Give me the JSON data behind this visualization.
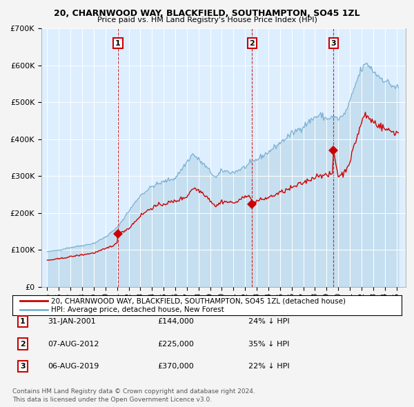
{
  "title": "20, CHARNWOOD WAY, BLACKFIELD, SOUTHAMPTON, SO45 1ZL",
  "subtitle": "Price paid vs. HM Land Registry's House Price Index (HPI)",
  "legend_line1": "20, CHARNWOOD WAY, BLACKFIELD, SOUTHAMPTON, SO45 1ZL (detached house)",
  "legend_line2": "HPI: Average price, detached house, New Forest",
  "footer1": "Contains HM Land Registry data © Crown copyright and database right 2024.",
  "footer2": "This data is licensed under the Open Government Licence v3.0.",
  "sales": [
    {
      "num": 1,
      "date": "31-JAN-2001",
      "date_x": 2001.08,
      "price": 144000,
      "hpi_pct": "24% ↓ HPI"
    },
    {
      "num": 2,
      "date": "07-AUG-2012",
      "date_x": 2012.6,
      "price": 225000,
      "hpi_pct": "35% ↓ HPI"
    },
    {
      "num": 3,
      "date": "06-AUG-2019",
      "date_x": 2019.6,
      "price": 370000,
      "hpi_pct": "22% ↓ HPI"
    }
  ],
  "fig_bg": "#f4f4f4",
  "plot_bg": "#ddeeff",
  "grid_color": "#ffffff",
  "hpi_color": "#7ab0d4",
  "hpi_fill_color": "#c5dff0",
  "sold_color": "#cc0000",
  "sale_marker_color": "#cc0000",
  "dashed_line_color": "#cc0000",
  "ylim": [
    0,
    700000
  ],
  "yticks": [
    0,
    100000,
    200000,
    300000,
    400000,
    500000,
    600000,
    700000
  ],
  "ytick_labels": [
    "£0",
    "£100K",
    "£200K",
    "£300K",
    "£400K",
    "£500K",
    "£600K",
    "£700K"
  ],
  "xlim_start": 1994.5,
  "xlim_end": 2025.8,
  "hpi_anchors": {
    "1995.0": 95000,
    "1996.0": 100000,
    "1997.0": 107000,
    "1998.0": 112000,
    "1999.0": 118000,
    "2000.0": 135000,
    "2001.0": 160000,
    "2002.0": 205000,
    "2003.0": 248000,
    "2004.0": 272000,
    "2005.0": 285000,
    "2006.0": 295000,
    "2007.5": 360000,
    "2008.5": 330000,
    "2009.5": 295000,
    "2010.0": 315000,
    "2011.0": 310000,
    "2012.0": 325000,
    "2013.0": 345000,
    "2014.0": 365000,
    "2015.0": 390000,
    "2016.0": 415000,
    "2017.0": 435000,
    "2018.0": 460000,
    "2018.5": 465000,
    "2019.0": 455000,
    "2019.5": 460000,
    "2020.0": 455000,
    "2020.5": 465000,
    "2021.0": 500000,
    "2021.5": 550000,
    "2022.0": 590000,
    "2022.5": 605000,
    "2023.0": 585000,
    "2023.5": 570000,
    "2024.0": 560000,
    "2024.5": 548000,
    "2025.0": 540000
  },
  "sold_anchors": {
    "1995.0": 72000,
    "1996.0": 76000,
    "1997.0": 82000,
    "1998.0": 87000,
    "1999.0": 92000,
    "2000.0": 103000,
    "2001.0": 118000,
    "2001.08": 144000,
    "2002.0": 158000,
    "2003.0": 193000,
    "2004.0": 215000,
    "2005.0": 225000,
    "2006.0": 232000,
    "2007.0": 245000,
    "2007.5": 268000,
    "2008.0": 262000,
    "2008.5": 252000,
    "2009.5": 218000,
    "2010.0": 232000,
    "2011.0": 228000,
    "2011.5": 232000,
    "2012.0": 250000,
    "2012.5": 240000,
    "2012.6": 225000,
    "2013.0": 232000,
    "2014.0": 242000,
    "2015.0": 255000,
    "2016.0": 268000,
    "2017.0": 282000,
    "2018.0": 298000,
    "2018.5": 305000,
    "2019.0": 300000,
    "2019.5": 307000,
    "2019.6": 370000,
    "2020.0": 300000,
    "2020.5": 308000,
    "2021.0": 340000,
    "2021.5": 395000,
    "2022.0": 445000,
    "2022.3": 468000,
    "2022.5": 460000,
    "2023.0": 448000,
    "2023.5": 438000,
    "2024.0": 428000,
    "2024.5": 422000,
    "2025.0": 418000
  }
}
